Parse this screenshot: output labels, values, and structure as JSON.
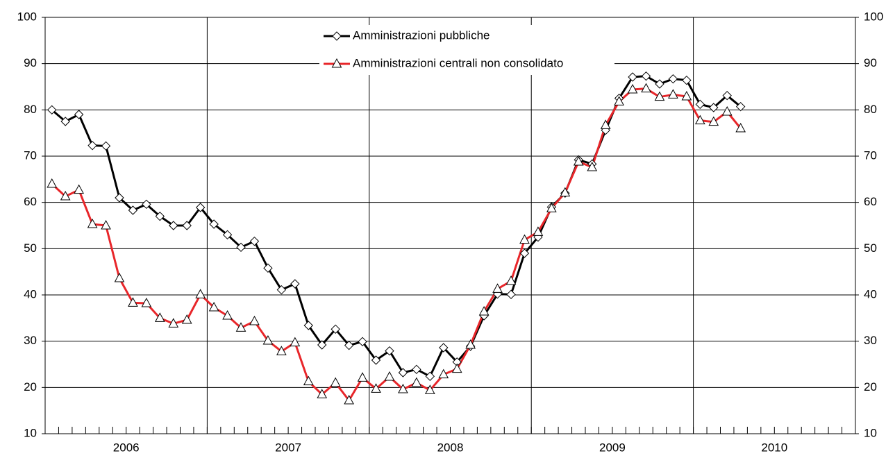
{
  "chart_data": {
    "type": "line",
    "categories": [
      null,
      null,
      null,
      null,
      null,
      null,
      null,
      null,
      null,
      null,
      null,
      null,
      null,
      null,
      null,
      null,
      null,
      null,
      null,
      null,
      null,
      null,
      null,
      null,
      null,
      null,
      null,
      null,
      null,
      null,
      null,
      null,
      null,
      null,
      null,
      null,
      null,
      null,
      null,
      null,
      null,
      null,
      null,
      null,
      null,
      null,
      null,
      null,
      null,
      null,
      null,
      null
    ],
    "year_labels": [
      "2006",
      "2007",
      "2008",
      "2009",
      "2010"
    ],
    "series": [
      {
        "name": "Amministrazioni pubbliche",
        "color": "#000000",
        "marker": "diamond",
        "values": [
          80,
          77.5,
          79,
          72.3,
          72.2,
          61,
          58.3,
          59.6,
          57,
          55,
          55,
          58.9,
          55.3,
          53,
          50.3,
          51.6,
          45.8,
          41.1,
          42.4,
          33.4,
          29.2,
          32.6,
          29.1,
          29.9,
          25.9,
          27.9,
          23.2,
          23.9,
          22.4,
          28.6,
          25.5,
          28.9,
          35.5,
          40.2,
          40.1,
          49,
          52.5,
          59,
          62,
          69.2,
          68.3,
          75.6,
          82.5,
          87.1,
          87.3,
          85.6,
          86.7,
          86.4,
          81.2,
          80.5,
          83.1,
          80.7
        ]
      },
      {
        "name": "Amministrazioni centrali non consolidato",
        "color": "#e8262a",
        "marker": "triangle",
        "values": [
          64,
          61.3,
          62.7,
          55.3,
          55,
          43.6,
          38.3,
          38.2,
          35,
          33.8,
          34.6,
          40.1,
          37.3,
          35.5,
          32.9,
          34.3,
          30.1,
          27.8,
          29.7,
          21.3,
          18.5,
          21,
          17.2,
          22.1,
          19.7,
          22.3,
          19.6,
          21,
          19.4,
          22.8,
          24,
          29.2,
          36.4,
          41.3,
          43,
          51.9,
          53.6,
          58.7,
          62.1,
          68.8,
          67.6,
          76.7,
          81.8,
          84.4,
          84.6,
          82.8,
          83.3,
          82.9,
          77.7,
          77.4,
          79.6,
          76
        ]
      }
    ],
    "ylim": [
      10,
      100
    ],
    "yticks": [
      10,
      20,
      30,
      40,
      50,
      60,
      70,
      80,
      90,
      100
    ],
    "grid": true
  }
}
